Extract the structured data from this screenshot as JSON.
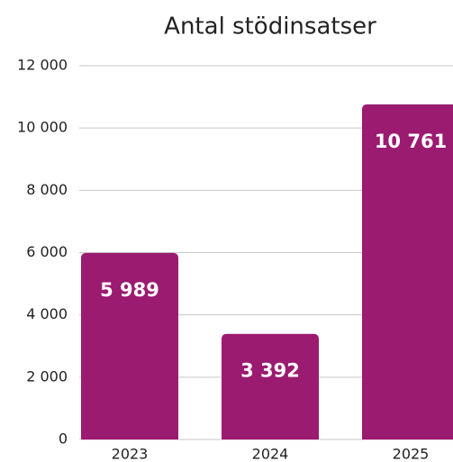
{
  "chart_data": {
    "type": "bar",
    "title": "Antal stödinsatser",
    "categories": [
      "2023",
      "2024",
      "2025"
    ],
    "values": [
      5989,
      3392,
      10761
    ],
    "value_labels": [
      "5 989",
      "3 392",
      "10 761"
    ],
    "color": "#9b1b70",
    "ylim": [
      0,
      12000
    ],
    "yticks": [
      0,
      {
        "value": 2000,
        "label": "2 000"
      },
      {
        "value": 4000,
        "label": "4 000"
      },
      {
        "value": 6000,
        "label": "6 000"
      },
      {
        "value": 8000,
        "label": "8 000"
      },
      {
        "value": 10000,
        "label": "10 000"
      },
      {
        "value": 12000,
        "label": "12 000"
      }
    ],
    "grid": true
  }
}
